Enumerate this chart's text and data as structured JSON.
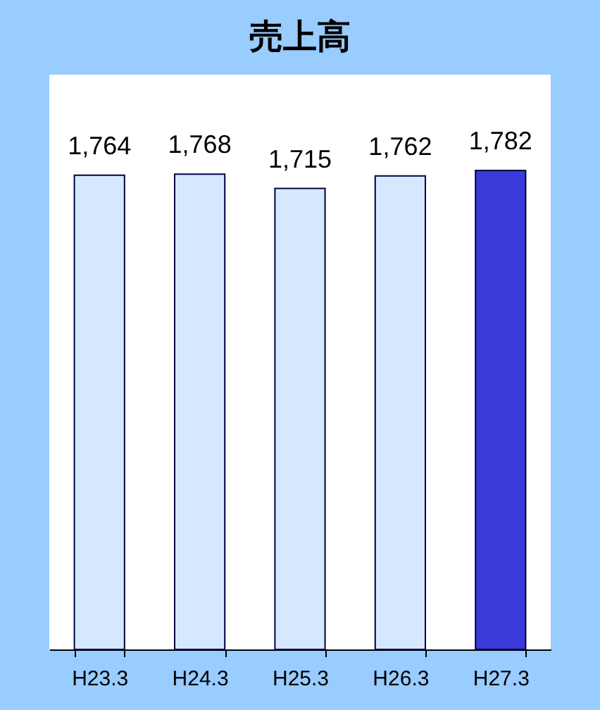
{
  "chart_data": {
    "type": "bar",
    "title": "売上高",
    "categories": [
      "H23.3",
      "H24.3",
      "H25.3",
      "H26.3",
      "H27.3"
    ],
    "values": [
      1764,
      1768,
      1715,
      1762,
      1782
    ],
    "colors": [
      "#d6e8ff",
      "#d6e8ff",
      "#d6e8ff",
      "#d6e8ff",
      "#3a3ad8"
    ],
    "value_labels": [
      "1,764",
      "1,768",
      "1,715",
      "1,762",
      "1,782"
    ],
    "grid": false,
    "legend": false
  }
}
